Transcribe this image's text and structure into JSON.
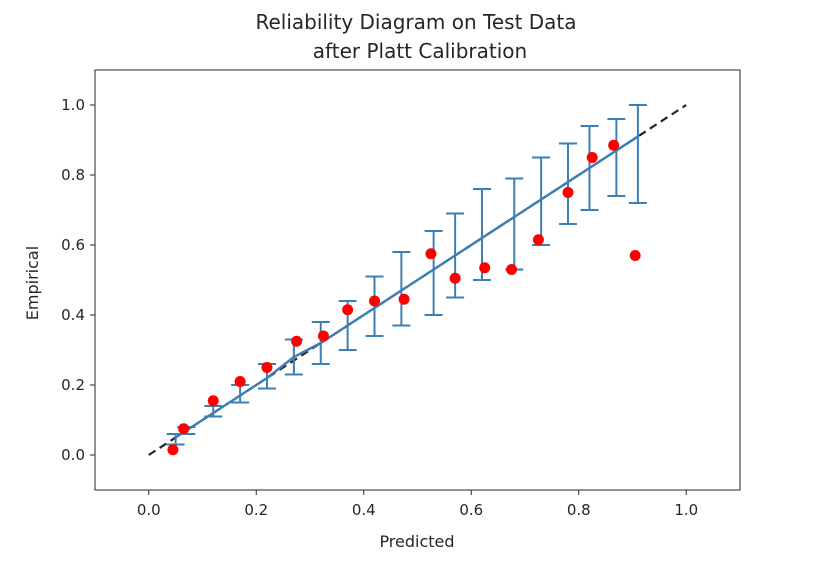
{
  "chart_data": {
    "type": "scatter",
    "title_line1": "Reliability Diagram on Test Data",
    "title_line2": "after Platt Calibration",
    "xlabel": "Predicted",
    "ylabel": "Empirical",
    "xlim": [
      -0.1,
      1.1
    ],
    "ylim": [
      -0.1,
      1.1
    ],
    "xticks": [
      "0.0",
      "0.2",
      "0.4",
      "0.6",
      "0.8",
      "1.0"
    ],
    "yticks": [
      "0.0",
      "0.2",
      "0.4",
      "0.6",
      "0.8",
      "1.0"
    ],
    "grid": false,
    "series": [
      {
        "kind": "errorbar",
        "color": "#3d7fb3",
        "points": [
          {
            "x": 0.05,
            "y": 0.05,
            "lo": 0.03,
            "hi": 0.06
          },
          {
            "x": 0.07,
            "y": 0.07,
            "lo": 0.06,
            "hi": 0.08
          },
          {
            "x": 0.12,
            "y": 0.12,
            "lo": 0.11,
            "hi": 0.14
          },
          {
            "x": 0.17,
            "y": 0.17,
            "lo": 0.15,
            "hi": 0.2
          },
          {
            "x": 0.22,
            "y": 0.22,
            "lo": 0.19,
            "hi": 0.26
          },
          {
            "x": 0.27,
            "y": 0.28,
            "lo": 0.23,
            "hi": 0.33
          },
          {
            "x": 0.32,
            "y": 0.32,
            "lo": 0.26,
            "hi": 0.38
          },
          {
            "x": 0.37,
            "y": 0.37,
            "lo": 0.3,
            "hi": 0.44
          },
          {
            "x": 0.42,
            "y": 0.42,
            "lo": 0.34,
            "hi": 0.51
          },
          {
            "x": 0.47,
            "y": 0.47,
            "lo": 0.37,
            "hi": 0.58
          },
          {
            "x": 0.53,
            "y": 0.53,
            "lo": 0.4,
            "hi": 0.64
          },
          {
            "x": 0.57,
            "y": 0.57,
            "lo": 0.45,
            "hi": 0.69
          },
          {
            "x": 0.62,
            "y": 0.62,
            "lo": 0.5,
            "hi": 0.76
          },
          {
            "x": 0.68,
            "y": 0.68,
            "lo": 0.53,
            "hi": 0.79
          },
          {
            "x": 0.73,
            "y": 0.73,
            "lo": 0.6,
            "hi": 0.85
          },
          {
            "x": 0.78,
            "y": 0.78,
            "lo": 0.66,
            "hi": 0.89
          },
          {
            "x": 0.82,
            "y": 0.82,
            "lo": 0.7,
            "hi": 0.94
          },
          {
            "x": 0.87,
            "y": 0.87,
            "lo": 0.74,
            "hi": 0.96
          },
          {
            "x": 0.91,
            "y": 0.91,
            "lo": 0.72,
            "hi": 1.0
          }
        ]
      },
      {
        "kind": "scatter",
        "color": "#ff0000",
        "points": [
          {
            "x": 0.045,
            "y": 0.015
          },
          {
            "x": 0.065,
            "y": 0.075
          },
          {
            "x": 0.12,
            "y": 0.155
          },
          {
            "x": 0.17,
            "y": 0.21
          },
          {
            "x": 0.22,
            "y": 0.25
          },
          {
            "x": 0.275,
            "y": 0.325
          },
          {
            "x": 0.325,
            "y": 0.34
          },
          {
            "x": 0.37,
            "y": 0.415
          },
          {
            "x": 0.42,
            "y": 0.44
          },
          {
            "x": 0.475,
            "y": 0.445
          },
          {
            "x": 0.525,
            "y": 0.575
          },
          {
            "x": 0.57,
            "y": 0.505
          },
          {
            "x": 0.625,
            "y": 0.535
          },
          {
            "x": 0.675,
            "y": 0.53
          },
          {
            "x": 0.725,
            "y": 0.615
          },
          {
            "x": 0.78,
            "y": 0.75
          },
          {
            "x": 0.825,
            "y": 0.85
          },
          {
            "x": 0.865,
            "y": 0.885
          },
          {
            "x": 0.905,
            "y": 0.57
          }
        ]
      },
      {
        "kind": "reference-line",
        "style": "dashed",
        "color": "#262626",
        "points": [
          {
            "x": 0.0,
            "y": 0.0
          },
          {
            "x": 1.0,
            "y": 1.0
          }
        ]
      }
    ]
  }
}
